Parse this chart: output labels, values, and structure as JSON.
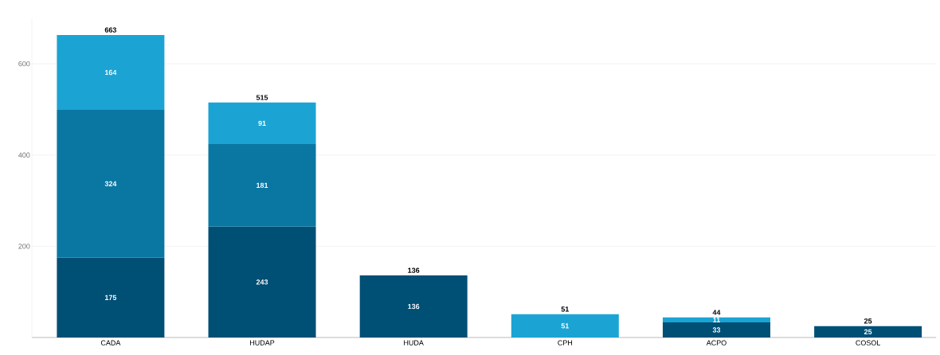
{
  "chart_data": {
    "type": "bar",
    "stacked": true,
    "categories": [
      "CADA",
      "HUDAP",
      "HUDA",
      "CPH",
      "ACPO",
      "COSOL"
    ],
    "series": [
      {
        "color": "#004f75",
        "values": [
          175,
          243,
          136,
          null,
          33,
          25
        ]
      },
      {
        "color": "#0a77a3",
        "values": [
          324,
          181,
          null,
          null,
          null,
          null
        ]
      },
      {
        "color": "#1ba4d3",
        "values": [
          164,
          91,
          null,
          51,
          11,
          null
        ]
      }
    ],
    "totals": [
      "663",
      "515",
      "136",
      "51",
      "44",
      "25"
    ],
    "data_labels": true,
    "ylim": [
      0,
      700
    ],
    "yticks": [
      200,
      400,
      600
    ],
    "grid": "y"
  }
}
